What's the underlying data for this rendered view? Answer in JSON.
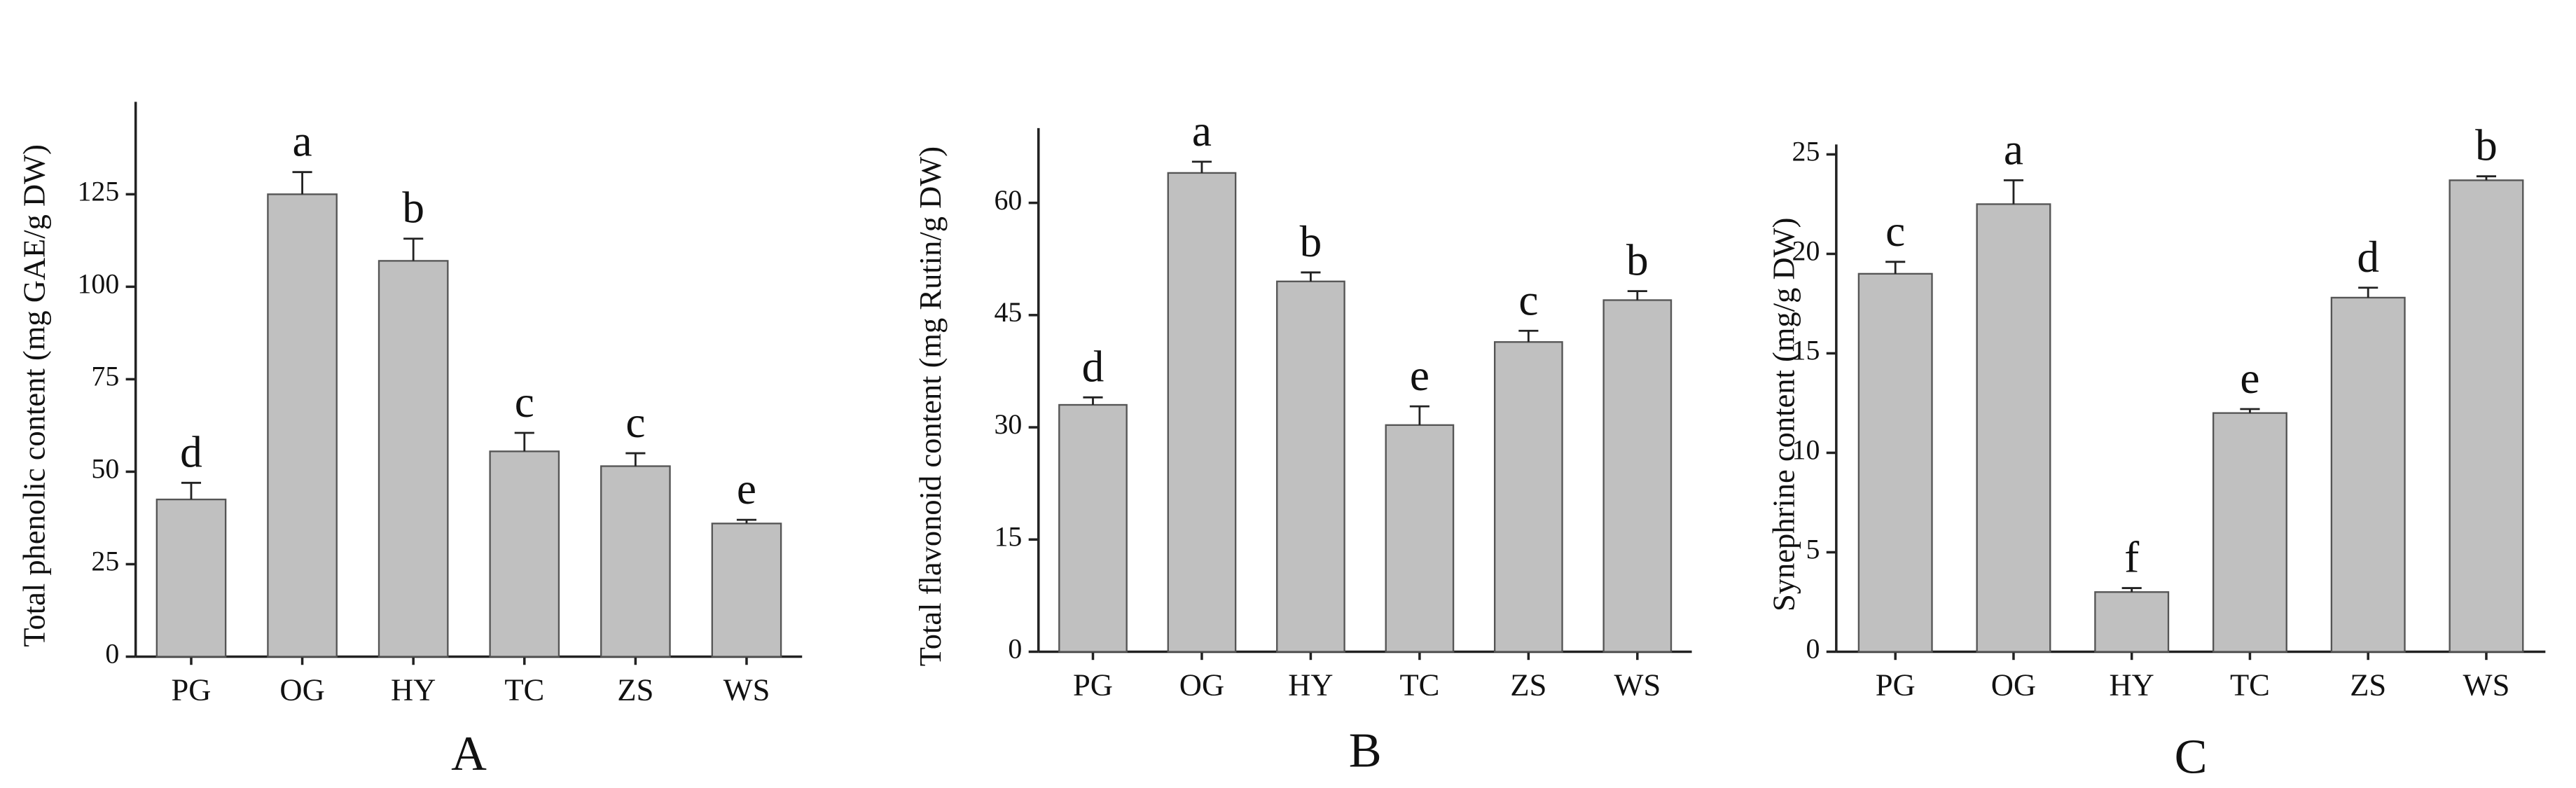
{
  "chart_data": [
    {
      "type": "bar",
      "panel_label": "A",
      "ylabel": "Total phenolic content (mg GAE/g DW)",
      "categories": [
        "PG",
        "OG",
        "HY",
        "TC",
        "ZS",
        "WS"
      ],
      "values": [
        42.5,
        125,
        107,
        55.5,
        51.5,
        36
      ],
      "errors": [
        4.5,
        6,
        6,
        5,
        3.5,
        1
      ],
      "annotations": [
        "d",
        "a",
        "b",
        "c",
        "c",
        "e"
      ],
      "color": "#c0c0c0",
      "ylim": [
        0,
        150
      ],
      "yticks": [
        0,
        25,
        50,
        75,
        100,
        125
      ]
    },
    {
      "type": "bar",
      "panel_label": "B",
      "ylabel": "Total flavonoid content (mg Rutin/g DW)",
      "categories": [
        "PG",
        "OG",
        "HY",
        "TC",
        "ZS",
        "WS"
      ],
      "values": [
        33,
        64,
        49.5,
        30.3,
        41.4,
        47
      ],
      "errors": [
        1,
        1.5,
        1.2,
        2.5,
        1.5,
        1.2
      ],
      "annotations": [
        "d",
        "a",
        "b",
        "e",
        "c",
        "b"
      ],
      "color": "#c0c0c0",
      "ylim": [
        0,
        70
      ],
      "yticks": [
        0,
        15,
        30,
        45,
        60
      ]
    },
    {
      "type": "bar",
      "panel_label": "C",
      "ylabel": "Synephrine content (mg/g DW)",
      "categories": [
        "PG",
        "OG",
        "HY",
        "TC",
        "ZS",
        "WS"
      ],
      "values": [
        19,
        22.5,
        3,
        12,
        17.8,
        23.7
      ],
      "errors": [
        0.6,
        1.2,
        0.2,
        0.2,
        0.5,
        0.2
      ],
      "annotations": [
        "c",
        "a",
        "f",
        "e",
        "d",
        "b"
      ],
      "color": "#c0c0c0",
      "ylim": [
        0,
        25.5
      ],
      "yticks": [
        0,
        5,
        10,
        15,
        20,
        25
      ]
    }
  ]
}
